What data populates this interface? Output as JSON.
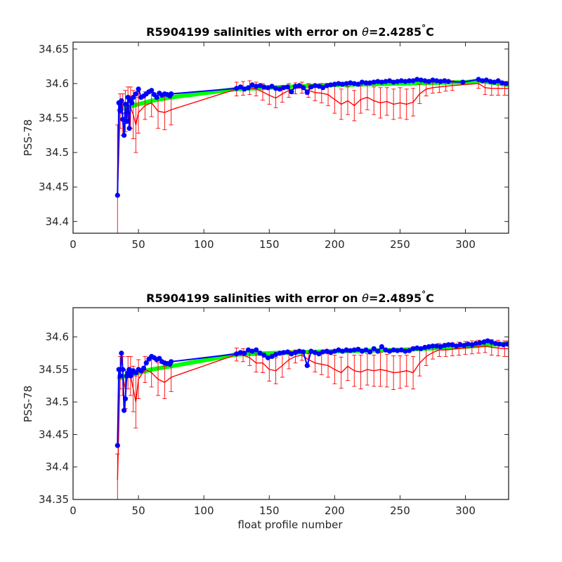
{
  "chart_data": [
    {
      "type": "line",
      "title_prefix": "R5904199 salinities with error on ",
      "theta_symbol": "θ",
      "theta_value": "=2.4285",
      "degree_symbol": "°",
      "unit": "C",
      "xlabel": "",
      "ylabel": "PSS-78",
      "xlim": [
        0,
        333
      ],
      "ylim": [
        34.383,
        34.66
      ],
      "xticks": [
        0,
        50,
        100,
        150,
        200,
        250,
        300
      ],
      "yticks": [
        34.4,
        34.45,
        34.5,
        34.55,
        34.6,
        34.65
      ],
      "ytick_labels": [
        "34.4",
        "34.45",
        "34.5",
        "34.55",
        "34.6",
        "34.65"
      ],
      "grid": false,
      "series": [
        {
          "role": "mapped",
          "color": "#00ff00",
          "x": [
            34,
            40,
            50,
            60,
            75,
            125,
            150,
            200,
            250,
            300,
            310,
            333
          ],
          "y": [
            34.56,
            34.565,
            34.57,
            34.575,
            34.58,
            34.592,
            34.594,
            34.598,
            34.6,
            34.602,
            34.604,
            34.598
          ]
        },
        {
          "role": "float_salinity",
          "color": "#0000ff",
          "x": [
            34,
            35,
            36,
            37,
            38,
            39,
            40,
            41,
            42,
            43,
            44,
            45,
            46,
            48,
            50,
            52,
            54,
            56,
            58,
            60,
            62,
            64,
            66,
            68,
            70,
            72,
            74,
            75,
            125,
            128,
            131,
            134,
            137,
            140,
            143,
            146,
            149,
            152,
            155,
            158,
            161,
            164,
            167,
            170,
            173,
            176,
            179,
            182,
            185,
            188,
            191,
            194,
            197,
            200,
            203,
            206,
            209,
            212,
            215,
            218,
            221,
            224,
            227,
            230,
            233,
            236,
            239,
            242,
            245,
            248,
            251,
            254,
            257,
            260,
            263,
            266,
            269,
            272,
            275,
            278,
            281,
            284,
            287,
            298,
            310,
            313,
            316,
            319,
            322,
            325,
            328,
            331
          ],
          "y": [
            34.438,
            34.572,
            34.56,
            34.575,
            34.548,
            34.525,
            34.57,
            34.545,
            34.58,
            34.535,
            34.575,
            34.572,
            34.58,
            34.585,
            34.592,
            34.58,
            34.582,
            34.585,
            34.588,
            34.59,
            34.584,
            34.58,
            34.586,
            34.583,
            34.585,
            34.584,
            34.582,
            34.585,
            34.593,
            34.595,
            34.592,
            34.594,
            34.598,
            34.596,
            34.597,
            34.595,
            34.594,
            34.596,
            34.593,
            34.592,
            34.594,
            34.595,
            34.588,
            34.596,
            34.597,
            34.594,
            34.587,
            34.595,
            34.597,
            34.596,
            34.594,
            34.597,
            34.598,
            34.599,
            34.6,
            34.599,
            34.6,
            34.601,
            34.6,
            34.599,
            34.602,
            34.601,
            34.601,
            34.602,
            34.603,
            34.602,
            34.603,
            34.604,
            34.602,
            34.603,
            34.604,
            34.603,
            34.604,
            34.604,
            34.606,
            34.605,
            34.604,
            34.603,
            34.605,
            34.604,
            34.603,
            34.604,
            34.603,
            34.602,
            34.606,
            34.604,
            34.605,
            34.603,
            34.602,
            34.604,
            34.601,
            34.6
          ]
        },
        {
          "role": "error_center",
          "color": "#ff0000",
          "x": [
            34,
            36,
            38,
            40,
            42,
            44,
            46,
            48,
            50,
            55,
            60,
            65,
            70,
            75,
            125,
            130,
            135,
            140,
            145,
            150,
            155,
            160,
            165,
            170,
            175,
            180,
            185,
            190,
            195,
            200,
            205,
            210,
            215,
            220,
            225,
            230,
            235,
            240,
            245,
            250,
            255,
            260,
            265,
            270,
            275,
            280,
            285,
            290,
            310,
            315,
            320,
            325,
            330,
            333
          ],
          "y": [
            34.44,
            34.56,
            34.555,
            34.56,
            34.57,
            34.565,
            34.555,
            34.54,
            34.558,
            34.568,
            34.572,
            34.56,
            34.558,
            34.562,
            34.592,
            34.593,
            34.594,
            34.592,
            34.588,
            34.583,
            34.579,
            34.585,
            34.59,
            34.593,
            34.594,
            34.59,
            34.587,
            34.586,
            34.584,
            34.577,
            34.57,
            34.575,
            34.568,
            34.577,
            34.58,
            34.575,
            34.572,
            34.574,
            34.57,
            34.572,
            34.57,
            34.573,
            34.585,
            34.592,
            34.594,
            34.595,
            34.596,
            34.597,
            34.6,
            34.594,
            34.593,
            34.593,
            34.593,
            34.593
          ]
        }
      ],
      "error_half_width": [
        0.1,
        0.025,
        0.03,
        0.03,
        0.025,
        0.03,
        0.035,
        0.04,
        0.03,
        0.02,
        0.02,
        0.025,
        0.025,
        0.022,
        0.01,
        0.01,
        0.01,
        0.01,
        0.012,
        0.013,
        0.014,
        0.012,
        0.01,
        0.008,
        0.008,
        0.01,
        0.012,
        0.014,
        0.016,
        0.02,
        0.022,
        0.02,
        0.022,
        0.02,
        0.018,
        0.02,
        0.022,
        0.02,
        0.022,
        0.022,
        0.022,
        0.02,
        0.014,
        0.01,
        0.008,
        0.008,
        0.007,
        0.007,
        0.007,
        0.01,
        0.01,
        0.01,
        0.01,
        0.01
      ]
    },
    {
      "type": "line",
      "title_prefix": "R5904199 salinities with error on ",
      "theta_symbol": "θ",
      "theta_value": "=2.4895",
      "degree_symbol": "°",
      "unit": "C",
      "xlabel": "float profile number",
      "ylabel": "PSS-78",
      "xlim": [
        0,
        333
      ],
      "ylim": [
        34.35,
        34.645
      ],
      "xticks": [
        0,
        50,
        100,
        150,
        200,
        250,
        300
      ],
      "yticks": [
        34.35,
        34.4,
        34.45,
        34.5,
        34.55,
        34.6
      ],
      "ytick_labels": [
        "34.35",
        "34.4",
        "34.45",
        "34.5",
        "34.55",
        "34.6"
      ],
      "grid": false,
      "series": [
        {
          "role": "mapped",
          "color": "#00ff00",
          "x": [
            34,
            40,
            50,
            60,
            75,
            125,
            150,
            200,
            250,
            300,
            333
          ],
          "y": [
            34.535,
            34.54,
            34.545,
            34.55,
            34.555,
            34.573,
            34.575,
            34.578,
            34.58,
            34.585,
            34.59
          ]
        },
        {
          "role": "float_salinity",
          "color": "#0000ff",
          "x": [
            34,
            35,
            36,
            37,
            38,
            39,
            40,
            41,
            42,
            43,
            44,
            45,
            46,
            48,
            50,
            52,
            54,
            56,
            58,
            60,
            62,
            64,
            66,
            68,
            70,
            72,
            74,
            75,
            125,
            128,
            131,
            134,
            137,
            140,
            143,
            146,
            149,
            152,
            155,
            158,
            161,
            164,
            167,
            170,
            173,
            176,
            179,
            182,
            185,
            188,
            191,
            194,
            197,
            200,
            203,
            206,
            209,
            212,
            215,
            218,
            221,
            224,
            227,
            230,
            233,
            236,
            239,
            242,
            245,
            248,
            251,
            254,
            257,
            260,
            263,
            266,
            269,
            272,
            275,
            278,
            281,
            284,
            287,
            290,
            293,
            296,
            299,
            302,
            305,
            308,
            311,
            314,
            317,
            320,
            323,
            326,
            329,
            332
          ],
          "y": [
            34.433,
            34.55,
            34.54,
            34.575,
            34.55,
            34.487,
            34.505,
            34.54,
            34.545,
            34.55,
            34.54,
            34.545,
            34.548,
            34.545,
            34.55,
            34.548,
            34.552,
            34.56,
            34.566,
            34.57,
            34.568,
            34.565,
            34.567,
            34.562,
            34.56,
            34.559,
            34.558,
            34.562,
            34.574,
            34.576,
            34.575,
            34.58,
            34.578,
            34.58,
            34.575,
            34.572,
            34.568,
            34.57,
            34.573,
            34.575,
            34.576,
            34.577,
            34.574,
            34.576,
            34.578,
            34.577,
            34.556,
            34.578,
            34.576,
            34.574,
            34.577,
            34.578,
            34.576,
            34.578,
            34.58,
            34.578,
            34.58,
            34.579,
            34.58,
            34.581,
            34.578,
            34.58,
            34.577,
            34.582,
            34.578,
            34.585,
            34.58,
            34.578,
            34.58,
            34.579,
            34.58,
            34.578,
            34.579,
            34.582,
            34.583,
            34.582,
            34.584,
            34.585,
            34.586,
            34.586,
            34.585,
            34.587,
            34.588,
            34.588,
            34.586,
            34.588,
            34.587,
            34.589,
            34.588,
            34.59,
            34.591,
            34.592,
            34.594,
            34.592,
            34.59,
            34.589,
            34.588,
            34.589
          ]
        },
        {
          "role": "error_center",
          "color": "#ff0000",
          "x": [
            34,
            36,
            38,
            40,
            42,
            44,
            46,
            48,
            50,
            55,
            60,
            65,
            70,
            75,
            125,
            130,
            135,
            140,
            145,
            150,
            155,
            160,
            165,
            170,
            175,
            180,
            185,
            190,
            195,
            200,
            205,
            210,
            215,
            220,
            225,
            230,
            235,
            240,
            245,
            250,
            255,
            260,
            265,
            270,
            275,
            280,
            285,
            290,
            295,
            300,
            305,
            310,
            315,
            320,
            325,
            330,
            333
          ],
          "y": [
            34.38,
            34.545,
            34.54,
            34.52,
            34.545,
            34.54,
            34.52,
            34.5,
            34.535,
            34.55,
            34.545,
            34.535,
            34.53,
            34.538,
            34.573,
            34.572,
            34.568,
            34.56,
            34.56,
            34.55,
            34.548,
            34.556,
            34.565,
            34.57,
            34.572,
            34.565,
            34.56,
            34.558,
            34.556,
            34.55,
            34.545,
            34.555,
            34.548,
            34.546,
            34.55,
            34.548,
            34.55,
            34.548,
            34.545,
            34.546,
            34.548,
            34.545,
            34.56,
            34.57,
            34.576,
            34.58,
            34.58,
            34.581,
            34.582,
            34.583,
            34.584,
            34.585,
            34.586,
            34.584,
            34.583,
            34.582,
            34.582
          ]
        }
      ],
      "error_half_width": [
        0.04,
        0.025,
        0.03,
        0.03,
        0.025,
        0.03,
        0.035,
        0.04,
        0.03,
        0.02,
        0.022,
        0.025,
        0.025,
        0.022,
        0.01,
        0.01,
        0.012,
        0.014,
        0.015,
        0.018,
        0.02,
        0.018,
        0.014,
        0.01,
        0.008,
        0.01,
        0.014,
        0.016,
        0.018,
        0.022,
        0.024,
        0.022,
        0.024,
        0.026,
        0.024,
        0.024,
        0.026,
        0.025,
        0.026,
        0.025,
        0.024,
        0.025,
        0.02,
        0.014,
        0.01,
        0.01,
        0.01,
        0.01,
        0.01,
        0.01,
        0.01,
        0.01,
        0.01,
        0.012,
        0.012,
        0.012,
        0.012
      ]
    }
  ]
}
